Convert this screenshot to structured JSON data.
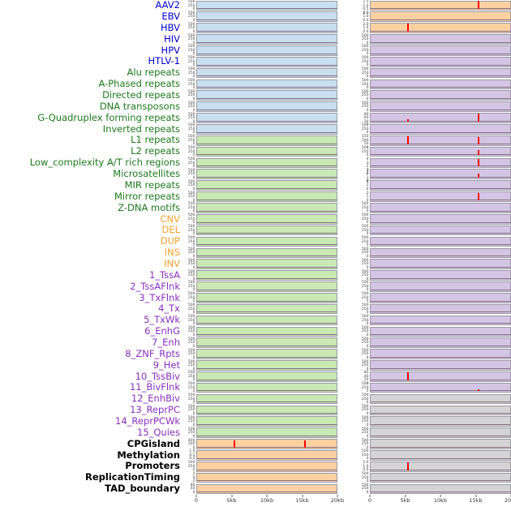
{
  "chart_data": {
    "type": "area",
    "title": "",
    "x_axis": {
      "ticks": [
        "0",
        "5kb",
        "10kb",
        "15kb",
        "20kb"
      ],
      "range_kb": [
        0,
        20
      ]
    },
    "columns": 2,
    "spike_color": "#ff0000",
    "label_colors": {
      "virus": "#0000cc",
      "repeat": "#1c7a1c",
      "sv": "#f2a32d",
      "chromhmm": "#8a2fc0",
      "other": "#000000"
    },
    "panel_colors": {
      "blue": "#c9dff0",
      "green": "#c9e8b4",
      "orange": "#fdd0a2",
      "purple": "#d5c5e5",
      "gray": "#d4d4d4"
    },
    "defaults": {
      "lyt": [
        "500",
        "250",
        "0"
      ],
      "ryt": [
        "500",
        "250",
        "0"
      ]
    },
    "rows": [
      {
        "label": "AAV2",
        "group": "virus",
        "lbg": "blue",
        "rbg": "orange",
        "ryt": [
          "1.5",
          "1.0",
          "0.5",
          "0.0"
        ],
        "rspikes": [
          {
            "x": 15.3,
            "h": 0.95
          }
        ]
      },
      {
        "label": "EBV",
        "group": "virus",
        "lbg": "blue",
        "rbg": "orange",
        "ryt": [
          "2.0",
          "1.0",
          "0.0"
        ]
      },
      {
        "label": "HBV",
        "group": "virus",
        "lbg": "blue",
        "rbg": "orange",
        "ryt": [
          "2.0",
          "1.0",
          "0.0"
        ],
        "rspikes": [
          {
            "x": 5.2,
            "h": 0.95
          }
        ]
      },
      {
        "label": "HIV",
        "group": "virus",
        "lbg": "blue",
        "rbg": "purple"
      },
      {
        "label": "HPV",
        "group": "virus",
        "lbg": "blue",
        "rbg": "purple"
      },
      {
        "label": "HTLV-1",
        "group": "virus",
        "lbg": "blue",
        "rbg": "purple"
      },
      {
        "label": "Alu repeats",
        "group": "repeat",
        "lbg": "blue",
        "rbg": "purple"
      },
      {
        "label": "A-Phased repeats",
        "group": "repeat",
        "lbg": "blue",
        "rbg": "purple"
      },
      {
        "label": "Directed repeats",
        "group": "repeat",
        "lbg": "blue",
        "rbg": "purple"
      },
      {
        "label": "DNA transposons",
        "group": "repeat",
        "lbg": "blue",
        "rbg": "purple"
      },
      {
        "label": "G-Quadruplex forming repeats",
        "group": "repeat",
        "lbg": "blue",
        "rbg": "purple",
        "ryt": [
          "90",
          "60",
          "30",
          "0"
        ],
        "rspikes": [
          {
            "x": 5.2,
            "h": 0.3
          },
          {
            "x": 15.3,
            "h": 0.95
          }
        ]
      },
      {
        "label": "Inverted repeats",
        "group": "repeat",
        "lbg": "blue",
        "rbg": "purple"
      },
      {
        "label": "L1 repeats",
        "group": "repeat",
        "lbg": "green",
        "rbg": "purple",
        "ryt": [
          "150",
          "100",
          "50",
          "0"
        ],
        "rspikes": [
          {
            "x": 5.2,
            "h": 0.9
          },
          {
            "x": 15.3,
            "h": 0.85
          }
        ]
      },
      {
        "label": "L2 repeats",
        "group": "repeat",
        "lbg": "green",
        "rbg": "purple",
        "rspikes": [
          {
            "x": 15.3,
            "h": 0.6
          }
        ]
      },
      {
        "label": "Low_complexity A/T rich regions",
        "group": "repeat",
        "lbg": "green",
        "rbg": "purple",
        "ryt": [
          "4",
          "3",
          "2",
          "1",
          "0"
        ],
        "rspikes": [
          {
            "x": 15.3,
            "h": 0.9
          }
        ]
      },
      {
        "label": "Microsatellites",
        "group": "repeat",
        "lbg": "green",
        "rbg": "purple",
        "ryt": [
          "3",
          "2",
          "1",
          "0"
        ],
        "rspikes": [
          {
            "x": 15.3,
            "h": 0.5
          }
        ]
      },
      {
        "label": "MIR repeats",
        "group": "repeat",
        "lbg": "green",
        "rbg": "purple",
        "ryt": [
          "4",
          "2",
          "0"
        ]
      },
      {
        "label": "Mirror repeats",
        "group": "repeat",
        "lbg": "green",
        "rbg": "purple",
        "ryt": [
          "2",
          "1",
          "0"
        ],
        "rspikes": [
          {
            "x": 15.3,
            "h": 0.85
          }
        ]
      },
      {
        "label": "Z-DNA motifs",
        "group": "repeat",
        "lbg": "green",
        "rbg": "purple"
      },
      {
        "label": "CNV",
        "group": "sv",
        "lbg": "green",
        "rbg": "purple"
      },
      {
        "label": "DEL",
        "group": "sv",
        "lbg": "green",
        "rbg": "purple"
      },
      {
        "label": "DUP",
        "group": "sv",
        "lbg": "green",
        "rbg": "purple"
      },
      {
        "label": "INS",
        "group": "sv",
        "lbg": "green",
        "rbg": "purple"
      },
      {
        "label": "INV",
        "group": "sv",
        "lbg": "green",
        "rbg": "purple"
      },
      {
        "label": "1_TssA",
        "group": "chromhmm",
        "lbg": "green",
        "rbg": "purple"
      },
      {
        "label": "2_TssAFlnk",
        "group": "chromhmm",
        "lbg": "green",
        "rbg": "purple"
      },
      {
        "label": "3_TxFlnk",
        "group": "chromhmm",
        "lbg": "green",
        "rbg": "purple"
      },
      {
        "label": "4_Tx",
        "group": "chromhmm",
        "lbg": "green",
        "rbg": "purple"
      },
      {
        "label": "5_TxWk",
        "group": "chromhmm",
        "lbg": "green",
        "rbg": "purple"
      },
      {
        "label": "6_EnhG",
        "group": "chromhmm",
        "lbg": "green",
        "rbg": "purple"
      },
      {
        "label": "7_Enh",
        "group": "chromhmm",
        "lbg": "green",
        "rbg": "purple"
      },
      {
        "label": "8_ZNF_Rpts",
        "group": "chromhmm",
        "lbg": "green",
        "rbg": "purple"
      },
      {
        "label": "9_Het",
        "group": "chromhmm",
        "lbg": "green",
        "rbg": "purple"
      },
      {
        "label": "10_TssBiv",
        "group": "chromhmm",
        "lbg": "green",
        "rbg": "purple",
        "ryt": [
          "60",
          "40",
          "20",
          "0"
        ],
        "rspikes": [
          {
            "x": 5.2,
            "h": 0.95
          }
        ]
      },
      {
        "label": "11_BivFlnk",
        "group": "chromhmm",
        "lbg": "green",
        "rbg": "purple",
        "rspikes": [
          {
            "x": 15.3,
            "h": 0.25
          }
        ]
      },
      {
        "label": "12_EnhBiv",
        "group": "chromhmm",
        "lbg": "green",
        "rbg": "gray"
      },
      {
        "label": "13_ReprPC",
        "group": "chromhmm",
        "lbg": "green",
        "rbg": "gray"
      },
      {
        "label": "14_ReprPCWk",
        "group": "chromhmm",
        "lbg": "green",
        "rbg": "gray"
      },
      {
        "label": "15_Quies",
        "group": "chromhmm",
        "lbg": "green",
        "rbg": "gray"
      },
      {
        "label": "CPGisland",
        "group": "other",
        "lbg": "orange",
        "rbg": "gray",
        "lyt": [
          "400",
          "200",
          "0"
        ],
        "lspikes": [
          {
            "x": 5.2,
            "h": 0.8
          },
          {
            "x": 15.3,
            "h": 0.85
          }
        ]
      },
      {
        "label": "Methylation",
        "group": "other",
        "lbg": "orange",
        "rbg": "gray",
        "lyt": [
          "1.0",
          "0.5",
          "0.0"
        ]
      },
      {
        "label": "Promoters",
        "group": "other",
        "lbg": "orange",
        "rbg": "gray",
        "ryt": [
          "2.0",
          "1.0",
          "0.0"
        ],
        "rspikes": [
          {
            "x": 5.2,
            "h": 0.9
          }
        ]
      },
      {
        "label": "ReplicationTiming",
        "group": "other",
        "lbg": "orange",
        "rbg": "gray",
        "lyt": [
          "2",
          "0",
          "-2"
        ]
      },
      {
        "label": "TAD_boundary",
        "group": "other",
        "lbg": "orange",
        "rbg": "gray",
        "lyt": [
          "80",
          "40",
          "0"
        ]
      }
    ]
  }
}
